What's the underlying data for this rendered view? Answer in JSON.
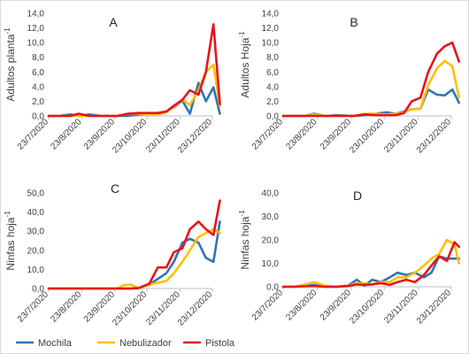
{
  "chart_data": [
    {
      "type": "line",
      "panel_letter": "A",
      "ylabel": "Adultos planta",
      "ylabel_superscript": "-1",
      "ylim": [
        0,
        14
      ],
      "yticks": [
        "0,0",
        "2,0",
        "4,0",
        "6,0",
        "8,0",
        "10,0",
        "12,0",
        "14,0"
      ],
      "ytick_values": [
        0,
        2,
        4,
        6,
        8,
        10,
        12,
        14
      ],
      "xticks": [
        "23/7/2020",
        "23/8/2020",
        "23/9/2020",
        "23/10/2020",
        "23/11/2020",
        "23/12/2020"
      ],
      "xtick_dates": [
        "2020-07-23",
        "2020-08-23",
        "2020-09-23",
        "2020-10-23",
        "2020-11-23",
        "2020-12-23"
      ],
      "grid": false,
      "series": [
        {
          "name": "Mochila",
          "color": "#2e75b6",
          "x": [
            "2020-07-23",
            "2020-08-02",
            "2020-08-12",
            "2020-08-20",
            "2020-08-30",
            "2020-09-10",
            "2020-09-25",
            "2020-10-05",
            "2020-10-15",
            "2020-10-25",
            "2020-11-02",
            "2020-11-10",
            "2020-11-17",
            "2020-11-25",
            "2020-12-02",
            "2020-12-10",
            "2020-12-17",
            "2020-12-24",
            "2020-12-30"
          ],
          "y": [
            0,
            0,
            0.2,
            0,
            0.2,
            0,
            0,
            0,
            0.2,
            0.3,
            0.3,
            0.6,
            1.2,
            2.1,
            0.3,
            4.5,
            2.0,
            3.9,
            0.3
          ]
        },
        {
          "name": "Nebulizador",
          "color": "#ffc000",
          "x": [
            "2020-07-23",
            "2020-08-02",
            "2020-08-12",
            "2020-08-20",
            "2020-08-30",
            "2020-09-10",
            "2020-09-25",
            "2020-10-05",
            "2020-10-15",
            "2020-10-25",
            "2020-11-02",
            "2020-11-10",
            "2020-11-17",
            "2020-11-25",
            "2020-12-02",
            "2020-12-10",
            "2020-12-17",
            "2020-12-24",
            "2020-12-30"
          ],
          "y": [
            0,
            0,
            0,
            0,
            0,
            0,
            0,
            0.3,
            0.3,
            0.2,
            0.2,
            0.5,
            1.3,
            2.2,
            1.5,
            3.5,
            6.0,
            7.0,
            1.3
          ]
        },
        {
          "name": "Pistola",
          "color": "#e8131b",
          "x": [
            "2020-07-23",
            "2020-08-02",
            "2020-08-12",
            "2020-08-20",
            "2020-08-30",
            "2020-09-10",
            "2020-09-25",
            "2020-10-05",
            "2020-10-15",
            "2020-10-25",
            "2020-11-02",
            "2020-11-10",
            "2020-11-17",
            "2020-11-25",
            "2020-12-02",
            "2020-12-10",
            "2020-12-17",
            "2020-12-24",
            "2020-12-30"
          ],
          "y": [
            0,
            0,
            0,
            0.3,
            0,
            0,
            0,
            0.3,
            0.4,
            0.4,
            0.4,
            0.6,
            1.4,
            2.2,
            3.5,
            2.9,
            6.0,
            12.5,
            1.6
          ]
        }
      ]
    },
    {
      "type": "line",
      "panel_letter": "B",
      "ylabel": "Adultos Hoja",
      "ylabel_superscript": "-1",
      "ylim": [
        0,
        14
      ],
      "yticks": [
        "0,0",
        "2,0",
        "4,0",
        "6,0",
        "8,0",
        "10,0",
        "12,0",
        "14,0"
      ],
      "ytick_values": [
        0,
        2,
        4,
        6,
        8,
        10,
        12,
        14
      ],
      "xticks": [
        "23/7/2020",
        "23/8/2020",
        "23/9/2020",
        "23/10/2020",
        "23/11/2020",
        "23/12/2020"
      ],
      "xtick_dates": [
        "2020-07-23",
        "2020-08-23",
        "2020-09-23",
        "2020-10-23",
        "2020-11-23",
        "2020-12-23"
      ],
      "grid": false,
      "series": [
        {
          "name": "Mochila",
          "color": "#2e75b6",
          "x": [
            "2020-07-23",
            "2020-08-02",
            "2020-08-12",
            "2020-08-20",
            "2020-08-30",
            "2020-09-10",
            "2020-09-25",
            "2020-10-05",
            "2020-10-15",
            "2020-10-25",
            "2020-11-02",
            "2020-11-10",
            "2020-11-17",
            "2020-11-25",
            "2020-12-02",
            "2020-12-10",
            "2020-12-17",
            "2020-12-24",
            "2020-12-30"
          ],
          "y": [
            0,
            0,
            0,
            0.3,
            0,
            0.1,
            0,
            0.1,
            0.3,
            0.5,
            0.3,
            0.6,
            0.9,
            1.0,
            3.6,
            2.9,
            2.8,
            3.6,
            1.8
          ]
        },
        {
          "name": "Nebulizador",
          "color": "#ffc000",
          "x": [
            "2020-07-23",
            "2020-08-02",
            "2020-08-12",
            "2020-08-20",
            "2020-08-30",
            "2020-09-10",
            "2020-09-25",
            "2020-10-05",
            "2020-10-15",
            "2020-10-25",
            "2020-11-02",
            "2020-11-10",
            "2020-11-17",
            "2020-11-25",
            "2020-12-02",
            "2020-12-10",
            "2020-12-17",
            "2020-12-24",
            "2020-12-30"
          ],
          "y": [
            0,
            0,
            0,
            0.2,
            0,
            0,
            0,
            0.3,
            0.3,
            0.2,
            0.3,
            0.5,
            0.9,
            1.0,
            4.2,
            6.5,
            7.5,
            6.8,
            2.5
          ]
        },
        {
          "name": "Pistola",
          "color": "#e8131b",
          "x": [
            "2020-07-23",
            "2020-08-02",
            "2020-08-12",
            "2020-08-20",
            "2020-08-30",
            "2020-09-10",
            "2020-09-25",
            "2020-10-05",
            "2020-10-15",
            "2020-10-25",
            "2020-11-02",
            "2020-11-10",
            "2020-11-17",
            "2020-11-25",
            "2020-12-02",
            "2020-12-10",
            "2020-12-17",
            "2020-12-24",
            "2020-12-30"
          ],
          "y": [
            0,
            0,
            0,
            0,
            0,
            0,
            0,
            0.2,
            0.1,
            0.1,
            0.1,
            0.4,
            2.0,
            2.5,
            6.0,
            8.5,
            9.5,
            10.0,
            7.4
          ]
        }
      ]
    },
    {
      "type": "line",
      "panel_letter": "C",
      "ylabel": "Ninfas hoja",
      "ylabel_superscript": "-1",
      "ylim": [
        0,
        50
      ],
      "yticks": [
        "0,0",
        "10,0",
        "20,0",
        "30,0",
        "40,0",
        "50,0"
      ],
      "ytick_values": [
        0,
        10,
        20,
        30,
        40,
        50
      ],
      "xticks": [
        "23/7/2020",
        "23/8/2020",
        "23/9/2020",
        "23/10/2020",
        "23/11/2020",
        "23/12/2020"
      ],
      "xtick_dates": [
        "2020-07-23",
        "2020-08-23",
        "2020-09-23",
        "2020-10-23",
        "2020-11-23",
        "2020-12-23"
      ],
      "grid": false,
      "series": [
        {
          "name": "Mochila",
          "color": "#2e75b6",
          "x": [
            "2020-07-23",
            "2020-08-02",
            "2020-08-12",
            "2020-08-20",
            "2020-08-30",
            "2020-09-10",
            "2020-09-25",
            "2020-10-01",
            "2020-10-08",
            "2020-10-15",
            "2020-10-25",
            "2020-11-02",
            "2020-11-10",
            "2020-11-17",
            "2020-11-25",
            "2020-12-02",
            "2020-12-10",
            "2020-12-17",
            "2020-12-24",
            "2020-12-30"
          ],
          "y": [
            0,
            0,
            0,
            0,
            0,
            0,
            0,
            0,
            0,
            0.2,
            2.0,
            5.0,
            8.0,
            14.0,
            24.0,
            26.0,
            24.0,
            16.0,
            14.0,
            35.0
          ]
        },
        {
          "name": "Nebulizador",
          "color": "#ffc000",
          "x": [
            "2020-07-23",
            "2020-08-02",
            "2020-08-12",
            "2020-08-20",
            "2020-08-30",
            "2020-09-10",
            "2020-09-25",
            "2020-10-01",
            "2020-10-08",
            "2020-10-15",
            "2020-10-25",
            "2020-11-02",
            "2020-11-10",
            "2020-11-17",
            "2020-11-25",
            "2020-12-02",
            "2020-12-10",
            "2020-12-17",
            "2020-12-24",
            "2020-12-30"
          ],
          "y": [
            0,
            0,
            0,
            0,
            0,
            0,
            0,
            1.8,
            2.0,
            0.2,
            2.0,
            3.0,
            4.0,
            8.0,
            14.0,
            20.0,
            27.0,
            29.0,
            31.0,
            29.0
          ]
        },
        {
          "name": "Pistola",
          "color": "#e8131b",
          "x": [
            "2020-07-23",
            "2020-08-02",
            "2020-08-12",
            "2020-08-20",
            "2020-08-30",
            "2020-09-10",
            "2020-09-25",
            "2020-10-01",
            "2020-10-08",
            "2020-10-15",
            "2020-10-25",
            "2020-11-02",
            "2020-11-10",
            "2020-11-17",
            "2020-11-25",
            "2020-12-02",
            "2020-12-10",
            "2020-12-17",
            "2020-12-24",
            "2020-12-30"
          ],
          "y": [
            0,
            0,
            0,
            0,
            0,
            0,
            0,
            0,
            0,
            0.3,
            2.5,
            11.0,
            11.0,
            19.0,
            21.0,
            31.0,
            35.0,
            31.0,
            28.0,
            46.0
          ]
        }
      ]
    },
    {
      "type": "line",
      "panel_letter": "D",
      "ylabel": "Ninfas hoja",
      "ylabel_superscript": "-1",
      "ylim": [
        0,
        40
      ],
      "yticks": [
        "0,0",
        "10,0",
        "20,0",
        "30,0",
        "40,0"
      ],
      "ytick_values": [
        0,
        10,
        20,
        30,
        40
      ],
      "xticks": [
        "23/7/2020",
        "23/8/2020",
        "23/9/2020",
        "23/10/2020",
        "23/11/2020",
        "23/12/2020"
      ],
      "xtick_dates": [
        "2020-07-23",
        "2020-08-23",
        "2020-09-23",
        "2020-10-23",
        "2020-11-23",
        "2020-12-23"
      ],
      "grid": false,
      "series": [
        {
          "name": "Mochila",
          "color": "#2e75b6",
          "x": [
            "2020-07-23",
            "2020-08-02",
            "2020-08-12",
            "2020-08-20",
            "2020-08-30",
            "2020-09-10",
            "2020-09-20",
            "2020-09-28",
            "2020-10-05",
            "2020-10-12",
            "2020-10-20",
            "2020-10-28",
            "2020-11-04",
            "2020-11-12",
            "2020-11-20",
            "2020-11-28",
            "2020-12-05",
            "2020-12-12",
            "2020-12-19",
            "2020-12-26",
            "2020-12-30"
          ],
          "y": [
            0,
            0,
            0.3,
            0.8,
            0,
            0,
            0.5,
            3.0,
            0.5,
            3.0,
            2.0,
            4.0,
            6.0,
            5.0,
            6.0,
            4.0,
            6.0,
            13.0,
            12.0,
            12.0,
            12.0
          ]
        },
        {
          "name": "Nebulizador",
          "color": "#ffc000",
          "x": [
            "2020-07-23",
            "2020-08-02",
            "2020-08-12",
            "2020-08-20",
            "2020-08-30",
            "2020-09-10",
            "2020-09-20",
            "2020-09-28",
            "2020-10-05",
            "2020-10-12",
            "2020-10-20",
            "2020-10-28",
            "2020-11-04",
            "2020-11-12",
            "2020-11-20",
            "2020-11-28",
            "2020-12-05",
            "2020-12-12",
            "2020-12-19",
            "2020-12-26",
            "2020-12-30"
          ],
          "y": [
            0,
            0,
            1.0,
            2.0,
            0.5,
            0,
            0.5,
            1.5,
            1.5,
            1.0,
            2.0,
            2.0,
            4.0,
            4.0,
            6.0,
            9.0,
            12.0,
            14.0,
            20.0,
            18.0,
            10.0
          ]
        },
        {
          "name": "Pistola",
          "color": "#e8131b",
          "x": [
            "2020-07-23",
            "2020-08-02",
            "2020-08-12",
            "2020-08-20",
            "2020-08-30",
            "2020-09-10",
            "2020-09-20",
            "2020-09-28",
            "2020-10-05",
            "2020-10-12",
            "2020-10-20",
            "2020-10-28",
            "2020-11-04",
            "2020-11-12",
            "2020-11-20",
            "2020-11-28",
            "2020-12-05",
            "2020-12-12",
            "2020-12-19",
            "2020-12-26",
            "2020-12-30"
          ],
          "y": [
            0,
            0,
            0.2,
            0.3,
            0,
            0,
            0.3,
            1.0,
            0.8,
            1.0,
            1.5,
            0.8,
            2.0,
            3.0,
            2.0,
            5.0,
            9.0,
            13.0,
            11.0,
            19.0,
            17.0
          ]
        }
      ]
    }
  ],
  "legend": {
    "placement": "bottom",
    "entries": [
      {
        "name": "Mochila",
        "color": "#2e75b6"
      },
      {
        "name": "Nebulizador",
        "color": "#ffc000"
      },
      {
        "name": "Pistola",
        "color": "#e8131b"
      }
    ]
  }
}
